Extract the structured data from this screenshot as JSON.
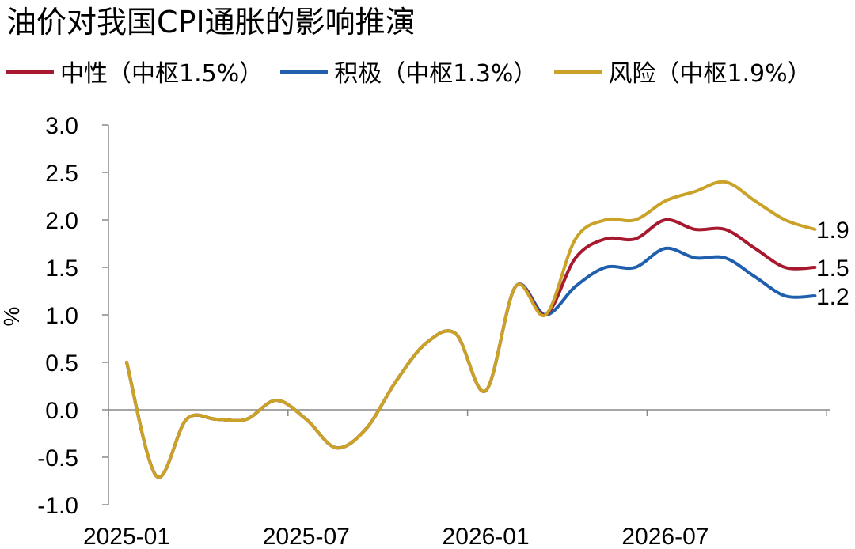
{
  "title": "油价对我国CPI通胀的影响推演",
  "chart_data": {
    "type": "line",
    "title": "油价对我国CPI通胀的影响推演",
    "ylabel": "%",
    "xlabel": "",
    "ylim": [
      -1.0,
      3.0
    ],
    "yticks": [
      "3.0",
      "2.5",
      "2.0",
      "1.5",
      "1.0",
      "0.5",
      "0.0",
      "-0.5",
      "-1.0"
    ],
    "ytick_values": [
      3.0,
      2.5,
      2.0,
      1.5,
      1.0,
      0.5,
      0.0,
      -0.5,
      -1.0
    ],
    "x": [
      "2025-01",
      "2025-02",
      "2025-03",
      "2025-04",
      "2025-05",
      "2025-06",
      "2025-07",
      "2025-08",
      "2025-09",
      "2025-10",
      "2025-11",
      "2025-12",
      "2026-01",
      "2026-02",
      "2026-03",
      "2026-04",
      "2026-05",
      "2026-06",
      "2026-07",
      "2026-08",
      "2026-09",
      "2026-10",
      "2026-11",
      "2026-12"
    ],
    "xtick_labels": [
      "2025-01",
      "2025-07",
      "2026-01",
      "2026-07"
    ],
    "xtick_positions": [
      0,
      6,
      12,
      18
    ],
    "grid": false,
    "legend_position": "top",
    "series": [
      {
        "name": "中性（中枢1.5%）",
        "color": "#A6192E",
        "values": [
          0.5,
          -0.7,
          -0.1,
          -0.1,
          -0.1,
          0.1,
          -0.1,
          -0.4,
          -0.2,
          0.3,
          0.7,
          0.8,
          0.2,
          1.3,
          1.0,
          1.6,
          1.8,
          1.8,
          2.0,
          1.9,
          1.9,
          1.7,
          1.5,
          1.5
        ],
        "end_label": "1.5"
      },
      {
        "name": "积极（中枢1.3%）",
        "color": "#1F5FAD",
        "values": [
          0.5,
          -0.7,
          -0.1,
          -0.1,
          -0.1,
          0.1,
          -0.1,
          -0.4,
          -0.2,
          0.3,
          0.7,
          0.8,
          0.2,
          1.3,
          1.0,
          1.3,
          1.5,
          1.5,
          1.7,
          1.6,
          1.6,
          1.4,
          1.2,
          1.2
        ],
        "end_label": "1.2"
      },
      {
        "name": "风险（中枢1.9%）",
        "color": "#C9A227",
        "values": [
          0.5,
          -0.7,
          -0.1,
          -0.1,
          -0.1,
          0.1,
          -0.1,
          -0.4,
          -0.2,
          0.3,
          0.7,
          0.8,
          0.2,
          1.3,
          1.0,
          1.8,
          2.0,
          2.0,
          2.2,
          2.3,
          2.4,
          2.2,
          2.0,
          1.9
        ],
        "end_label": "1.9"
      }
    ]
  }
}
